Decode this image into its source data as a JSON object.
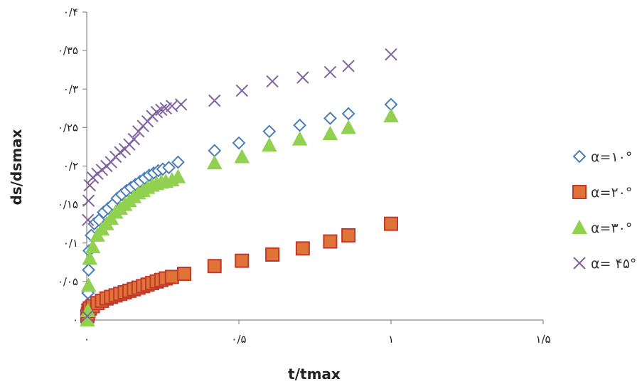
{
  "chart_data": {
    "type": "scatter",
    "title": "",
    "xlabel": "t/tmax",
    "ylabel": "ds/dsmax",
    "xlim": [
      0,
      1.5
    ],
    "ylim": [
      0,
      0.4
    ],
    "x_ticks": [
      {
        "value": 0,
        "label": "۰"
      },
      {
        "value": 0.5,
        "label": "۰/۵"
      },
      {
        "value": 1,
        "label": "۱"
      },
      {
        "value": 1.5,
        "label": "۱/۵"
      }
    ],
    "y_ticks": [
      {
        "value": 0,
        "label": "۰"
      },
      {
        "value": 0.05,
        "label": "۰/۰۵"
      },
      {
        "value": 0.1,
        "label": "۰/۱"
      },
      {
        "value": 0.15,
        "label": "۰/۱۵"
      },
      {
        "value": 0.2,
        "label": "۰/۲"
      },
      {
        "value": 0.25,
        "label": "۰/۲۵"
      },
      {
        "value": 0.3,
        "label": "۰/۳"
      },
      {
        "value": 0.35,
        "label": "۰/۳۵"
      },
      {
        "value": 0.4,
        "label": "۰/۴"
      }
    ],
    "grid": false,
    "legend_position": "right",
    "series": [
      {
        "name": "α=۱۰°",
        "marker": "diamond",
        "color": "#4a7ebb",
        "points": [
          [
            0.002,
            0.02
          ],
          [
            0.004,
            0.035
          ],
          [
            0.006,
            0.065
          ],
          [
            0.008,
            0.09
          ],
          [
            0.015,
            0.11
          ],
          [
            0.025,
            0.125
          ],
          [
            0.04,
            0.13
          ],
          [
            0.055,
            0.14
          ],
          [
            0.07,
            0.145
          ],
          [
            0.085,
            0.15
          ],
          [
            0.1,
            0.158
          ],
          [
            0.115,
            0.163
          ],
          [
            0.13,
            0.168
          ],
          [
            0.145,
            0.172
          ],
          [
            0.16,
            0.176
          ],
          [
            0.175,
            0.18
          ],
          [
            0.19,
            0.184
          ],
          [
            0.205,
            0.188
          ],
          [
            0.22,
            0.191
          ],
          [
            0.235,
            0.194
          ],
          [
            0.25,
            0.196
          ],
          [
            0.27,
            0.198
          ],
          [
            0.3,
            0.205
          ],
          [
            0.42,
            0.22
          ],
          [
            0.5,
            0.23
          ],
          [
            0.6,
            0.245
          ],
          [
            0.7,
            0.253
          ],
          [
            0.8,
            0.262
          ],
          [
            0.86,
            0.268
          ],
          [
            1.0,
            0.28
          ]
        ]
      },
      {
        "name": "α=۲۰°",
        "marker": "square",
        "color": "#d2562b",
        "points": [
          [
            0.002,
            0.005
          ],
          [
            0.004,
            0.008
          ],
          [
            0.006,
            0.012
          ],
          [
            0.01,
            0.015
          ],
          [
            0.02,
            0.018
          ],
          [
            0.035,
            0.022
          ],
          [
            0.05,
            0.025
          ],
          [
            0.065,
            0.028
          ],
          [
            0.08,
            0.03
          ],
          [
            0.095,
            0.032
          ],
          [
            0.11,
            0.034
          ],
          [
            0.125,
            0.036
          ],
          [
            0.14,
            0.038
          ],
          [
            0.155,
            0.04
          ],
          [
            0.17,
            0.042
          ],
          [
            0.185,
            0.044
          ],
          [
            0.2,
            0.046
          ],
          [
            0.215,
            0.048
          ],
          [
            0.23,
            0.05
          ],
          [
            0.245,
            0.052
          ],
          [
            0.26,
            0.054
          ],
          [
            0.28,
            0.056
          ],
          [
            0.32,
            0.06
          ],
          [
            0.42,
            0.07
          ],
          [
            0.51,
            0.077
          ],
          [
            0.61,
            0.085
          ],
          [
            0.71,
            0.093
          ],
          [
            0.8,
            0.102
          ],
          [
            0.86,
            0.11
          ],
          [
            1.0,
            0.125
          ]
        ]
      },
      {
        "name": "α=۳۰°",
        "marker": "triangle",
        "color": "#92d050",
        "points": [
          [
            0.002,
            0.0
          ],
          [
            0.004,
            0.012
          ],
          [
            0.006,
            0.045
          ],
          [
            0.01,
            0.08
          ],
          [
            0.02,
            0.095
          ],
          [
            0.035,
            0.11
          ],
          [
            0.05,
            0.118
          ],
          [
            0.065,
            0.125
          ],
          [
            0.08,
            0.132
          ],
          [
            0.095,
            0.14
          ],
          [
            0.11,
            0.145
          ],
          [
            0.125,
            0.15
          ],
          [
            0.14,
            0.155
          ],
          [
            0.155,
            0.16
          ],
          [
            0.17,
            0.165
          ],
          [
            0.185,
            0.168
          ],
          [
            0.2,
            0.172
          ],
          [
            0.215,
            0.175
          ],
          [
            0.23,
            0.177
          ],
          [
            0.245,
            0.179
          ],
          [
            0.26,
            0.18
          ],
          [
            0.28,
            0.182
          ],
          [
            0.3,
            0.186
          ],
          [
            0.42,
            0.204
          ],
          [
            0.51,
            0.212
          ],
          [
            0.6,
            0.227
          ],
          [
            0.7,
            0.235
          ],
          [
            0.8,
            0.242
          ],
          [
            0.86,
            0.25
          ],
          [
            1.0,
            0.265
          ]
        ]
      },
      {
        "name": "α= ۴۵°",
        "marker": "x",
        "color": "#8064a2",
        "points": [
          [
            0.002,
            0.005
          ],
          [
            0.004,
            0.13
          ],
          [
            0.006,
            0.155
          ],
          [
            0.01,
            0.175
          ],
          [
            0.02,
            0.185
          ],
          [
            0.035,
            0.19
          ],
          [
            0.05,
            0.195
          ],
          [
            0.065,
            0.2
          ],
          [
            0.08,
            0.205
          ],
          [
            0.095,
            0.212
          ],
          [
            0.11,
            0.218
          ],
          [
            0.125,
            0.222
          ],
          [
            0.14,
            0.228
          ],
          [
            0.155,
            0.235
          ],
          [
            0.17,
            0.245
          ],
          [
            0.185,
            0.252
          ],
          [
            0.2,
            0.258
          ],
          [
            0.215,
            0.265
          ],
          [
            0.23,
            0.27
          ],
          [
            0.245,
            0.273
          ],
          [
            0.26,
            0.275
          ],
          [
            0.28,
            0.278
          ],
          [
            0.31,
            0.28
          ],
          [
            0.42,
            0.285
          ],
          [
            0.51,
            0.298
          ],
          [
            0.61,
            0.31
          ],
          [
            0.71,
            0.315
          ],
          [
            0.8,
            0.322
          ],
          [
            0.86,
            0.33
          ],
          [
            1.0,
            0.345
          ]
        ]
      }
    ]
  }
}
